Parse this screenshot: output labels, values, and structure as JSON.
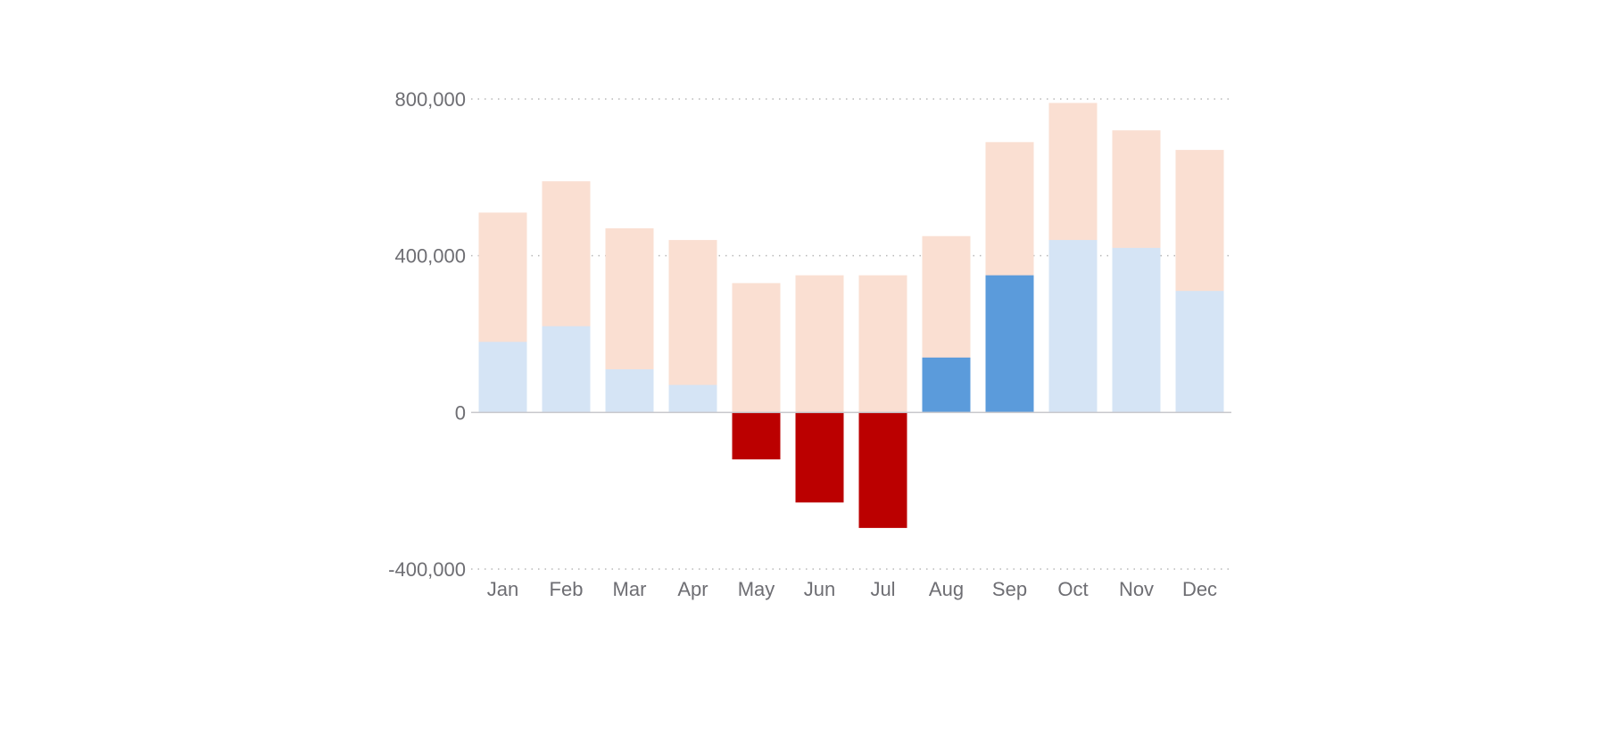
{
  "chart_data": {
    "type": "bar",
    "title": "",
    "xlabel": "",
    "ylabel": "",
    "ylim": [
      -400000,
      800000
    ],
    "yticks": [
      {
        "value": 800000,
        "label": "800,000"
      },
      {
        "value": 400000,
        "label": "400,000"
      },
      {
        "value": 0,
        "label": "0"
      },
      {
        "value": -400000,
        "label": "-400,000"
      }
    ],
    "grid": true,
    "legend": "none",
    "categories": [
      "Jan",
      "Feb",
      "Mar",
      "Apr",
      "May",
      "Jun",
      "Jul",
      "Aug",
      "Sep",
      "Oct",
      "Nov",
      "Dec"
    ],
    "series": [
      {
        "values": [
          510000,
          590000,
          470000,
          440000,
          330000,
          350000,
          350000,
          450000,
          690000,
          790000,
          720000,
          670000
        ],
        "color": "#fadfd2"
      },
      {
        "values": [
          180000,
          220000,
          110000,
          70000,
          -120000,
          -230000,
          -295000,
          140000,
          350000,
          440000,
          420000,
          310000
        ],
        "color_positive": "#d5e4f5",
        "color_negative": "#bb0000",
        "color_highlight": "#5b9bdb"
      }
    ],
    "highlighted_categories": [
      "May",
      "Jun",
      "Jul",
      "Aug",
      "Sep"
    ]
  }
}
